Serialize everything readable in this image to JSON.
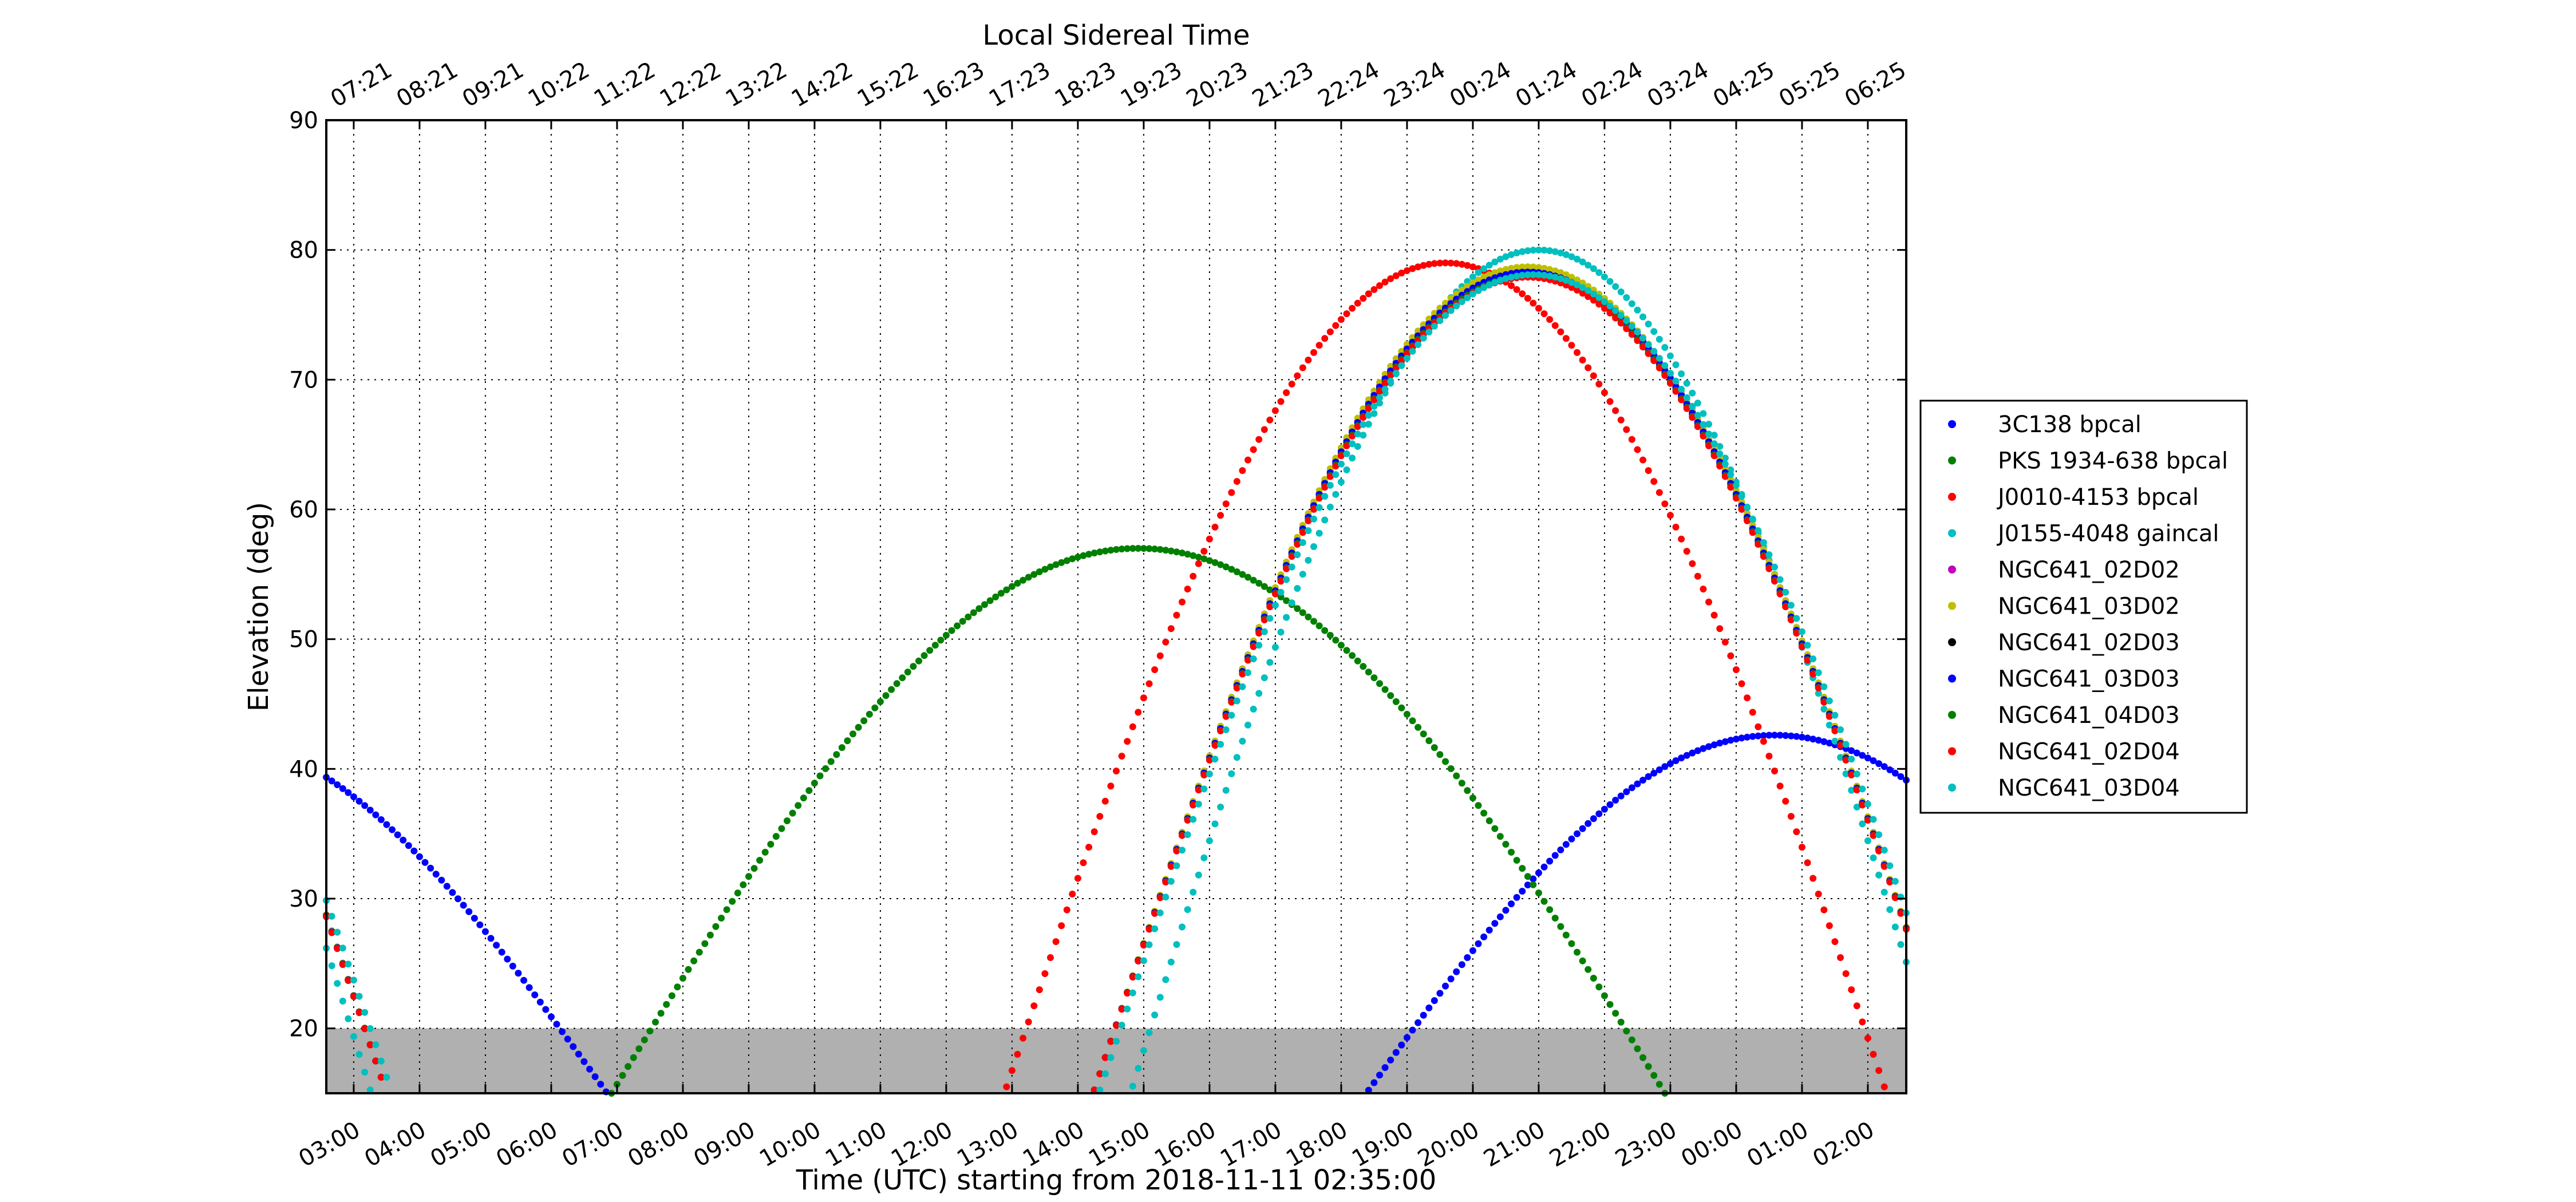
{
  "chart_data": {
    "type": "scatter",
    "title": "Local Sidereal Time",
    "xlabel": "Time (UTC) starting from 2018-11-11 02:35:00",
    "ylabel": "Elevation (deg)",
    "xlim": [
      "2018-11-11 02:35",
      "2018-11-12 02:35"
    ],
    "ylim": [
      15,
      90
    ],
    "yticks": [
      20,
      30,
      40,
      50,
      60,
      70,
      80,
      90
    ],
    "grid": true,
    "horizon_band": {
      "from": 15,
      "to": 20,
      "color": "#b0b0b0"
    },
    "bottom_ticks": [
      "03:00",
      "04:00",
      "05:00",
      "06:00",
      "07:00",
      "08:00",
      "09:00",
      "10:00",
      "11:00",
      "12:00",
      "13:00",
      "14:00",
      "15:00",
      "16:00",
      "17:00",
      "18:00",
      "19:00",
      "20:00",
      "21:00",
      "22:00",
      "23:00",
      "00:00",
      "01:00",
      "02:00"
    ],
    "bottom_tick_times": [
      "2018-11-11 03:00",
      "2018-11-11 04:00",
      "2018-11-11 05:00",
      "2018-11-11 06:00",
      "2018-11-11 07:00",
      "2018-11-11 08:00",
      "2018-11-11 09:00",
      "2018-11-11 10:00",
      "2018-11-11 11:00",
      "2018-11-11 12:00",
      "2018-11-11 13:00",
      "2018-11-11 14:00",
      "2018-11-11 15:00",
      "2018-11-11 16:00",
      "2018-11-11 17:00",
      "2018-11-11 18:00",
      "2018-11-11 19:00",
      "2018-11-11 20:00",
      "2018-11-11 21:00",
      "2018-11-11 22:00",
      "2018-11-11 23:00",
      "2018-11-12 00:00",
      "2018-11-12 01:00",
      "2018-11-12 02:00"
    ],
    "top_ticks": [
      "07:21",
      "08:21",
      "09:21",
      "10:22",
      "11:22",
      "12:22",
      "13:22",
      "14:22",
      "15:22",
      "16:23",
      "17:23",
      "18:23",
      "19:23",
      "20:23",
      "21:23",
      "22:24",
      "23:24",
      "00:24",
      "01:24",
      "02:24",
      "03:24",
      "04:25",
      "05:25",
      "06:25"
    ],
    "legend_position": "right, outside plot",
    "series": [
      {
        "name": "3C138 bpcal",
        "color": "#0000ff",
        "peak_time": "2018-11-12 00:35",
        "peak_elevation": 42.6,
        "half_width_hours": 6.2
      },
      {
        "name": "PKS 1934-638 bpcal",
        "color": "#008000",
        "peak_time": "2018-11-11 14:55",
        "peak_elevation": 57,
        "half_width_hours": 8.0
      },
      {
        "name": "J0010-4153 bpcal",
        "color": "#ff0000",
        "peak_time": "2018-11-11 19:35",
        "peak_elevation": 79,
        "half_width_hours": 6.7
      },
      {
        "name": "J0155-4048 gaincal",
        "color": "#00bfbf",
        "peak_time": "2018-11-11 21:00",
        "peak_elevation": 80,
        "half_width_hours": 6.2
      },
      {
        "name": "NGC641_02D02",
        "color": "#bf00bf",
        "peak_time": "2018-11-11 20:50",
        "peak_elevation": 78.4,
        "half_width_hours": 6.6
      },
      {
        "name": "NGC641_03D02",
        "color": "#bfbf00",
        "peak_time": "2018-11-11 20:50",
        "peak_elevation": 78.7,
        "half_width_hours": 6.6
      },
      {
        "name": "NGC641_02D03",
        "color": "#000000",
        "peak_time": "2018-11-11 20:50",
        "peak_elevation": 78.2,
        "half_width_hours": 6.6
      },
      {
        "name": "NGC641_03D03",
        "color": "#0000ff",
        "peak_time": "2018-11-11 20:50",
        "peak_elevation": 78.3,
        "half_width_hours": 6.6
      },
      {
        "name": "NGC641_04D03",
        "color": "#008000",
        "peak_time": "2018-11-11 20:50",
        "peak_elevation": 78.0,
        "half_width_hours": 6.6
      },
      {
        "name": "NGC641_02D04",
        "color": "#ff0000",
        "peak_time": "2018-11-11 20:50",
        "peak_elevation": 77.9,
        "half_width_hours": 6.6
      },
      {
        "name": "NGC641_03D04",
        "color": "#00bfbf",
        "peak_time": "2018-11-11 20:55",
        "peak_elevation": 78.1,
        "half_width_hours": 6.6
      }
    ]
  }
}
